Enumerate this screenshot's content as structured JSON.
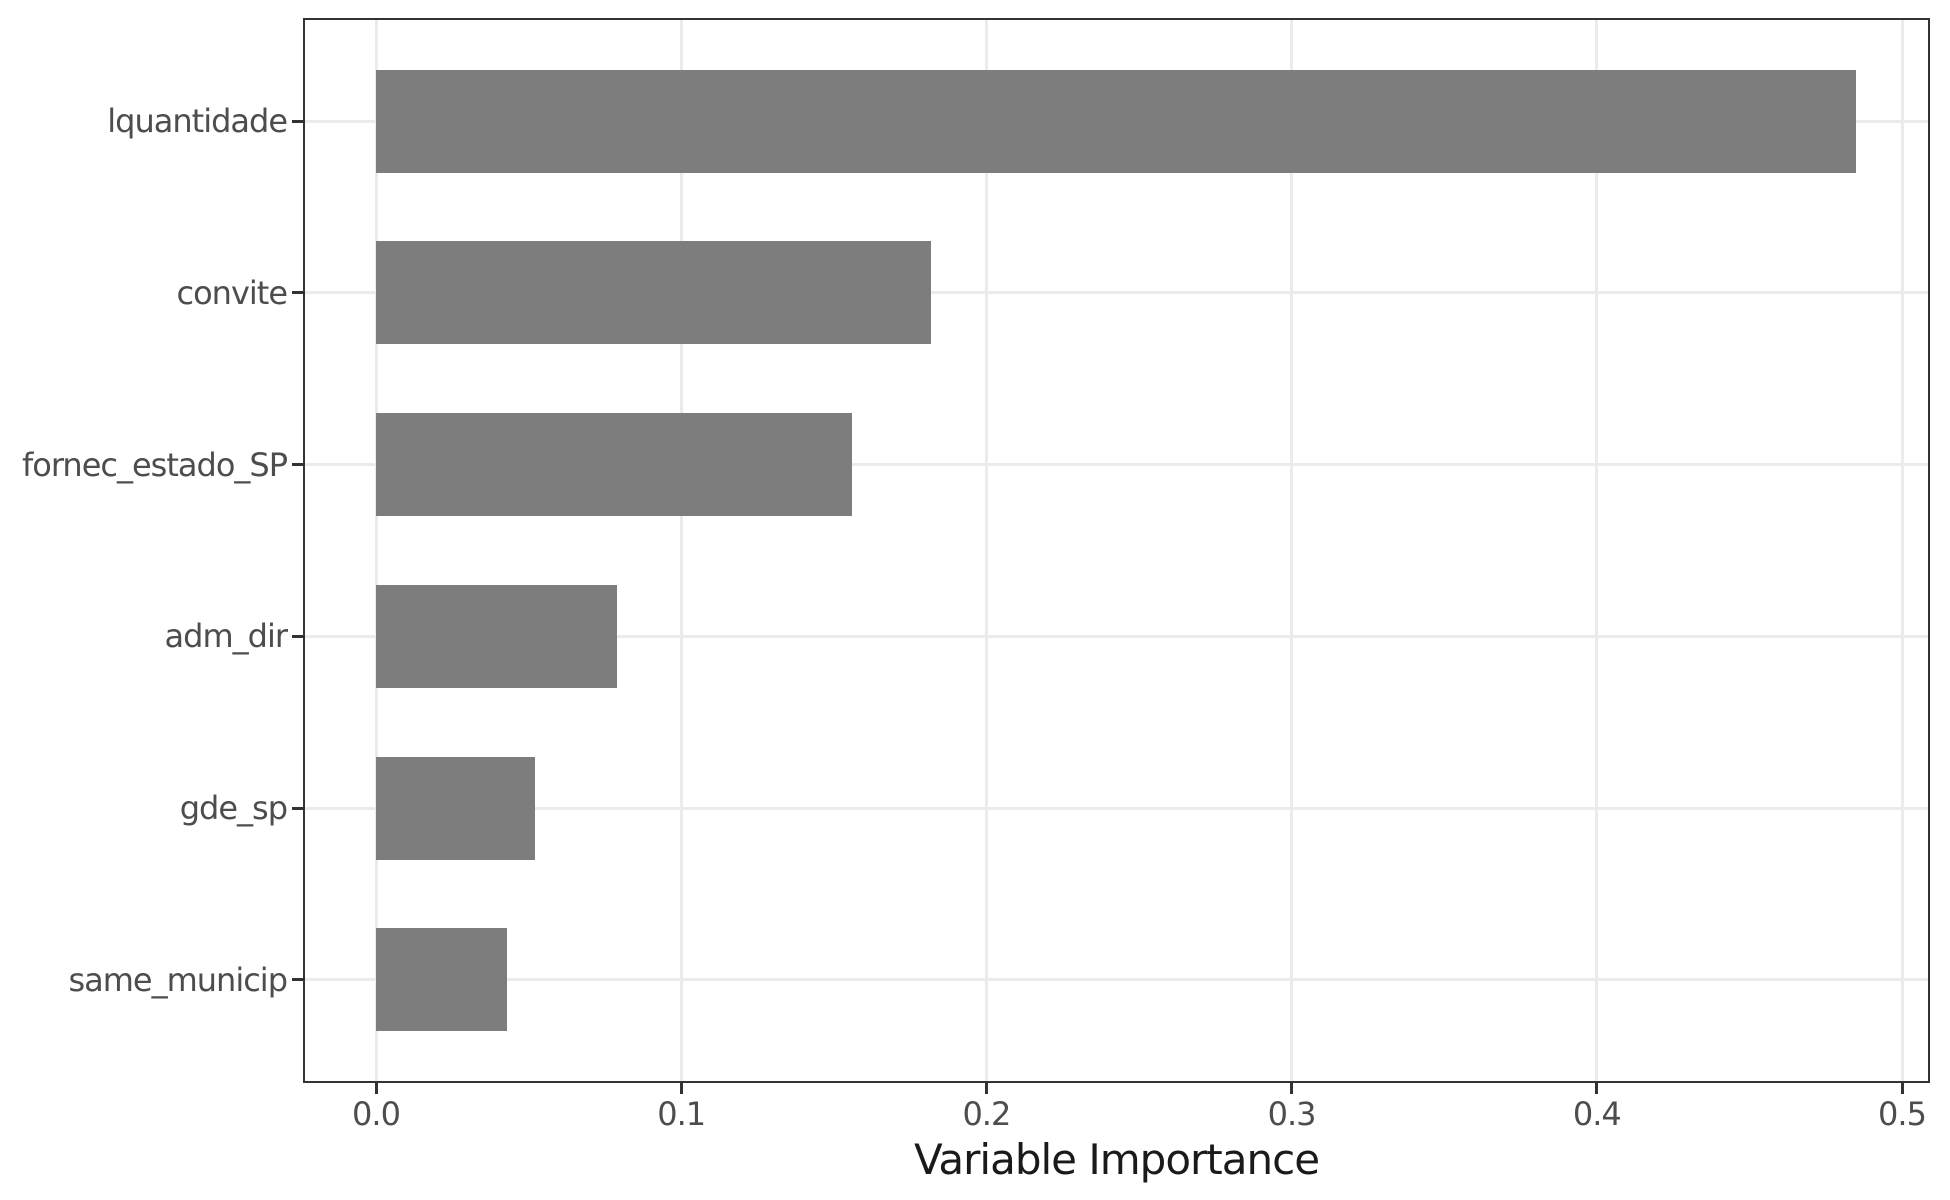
{
  "chart_data": {
    "type": "bar",
    "orientation": "horizontal",
    "title": "",
    "xlabel": "Variable Importance",
    "ylabel": "",
    "categories": [
      "lquantidade",
      "convite",
      "fornec_estado_SP",
      "adm_dir",
      "gde_sp",
      "same_municip"
    ],
    "values": [
      0.485,
      0.182,
      0.156,
      0.079,
      0.052,
      0.043
    ],
    "xlim": [
      0.0,
      0.5
    ],
    "x_ticks": [
      0.0,
      0.1,
      0.2,
      0.3,
      0.4,
      0.5
    ],
    "x_tick_labels": [
      "0.0",
      "0.1",
      "0.2",
      "0.3",
      "0.4",
      "0.5"
    ],
    "grid": "major-only",
    "legend": "none",
    "colors": {
      "bar_fill": "#7d7d7d",
      "grid": "#ebebeb",
      "panel_border": "#333333",
      "tick_mark": "#333333",
      "tick_label": "#4d4d4d",
      "axis_title": "#1a1a1a",
      "background": "#ffffff"
    }
  }
}
